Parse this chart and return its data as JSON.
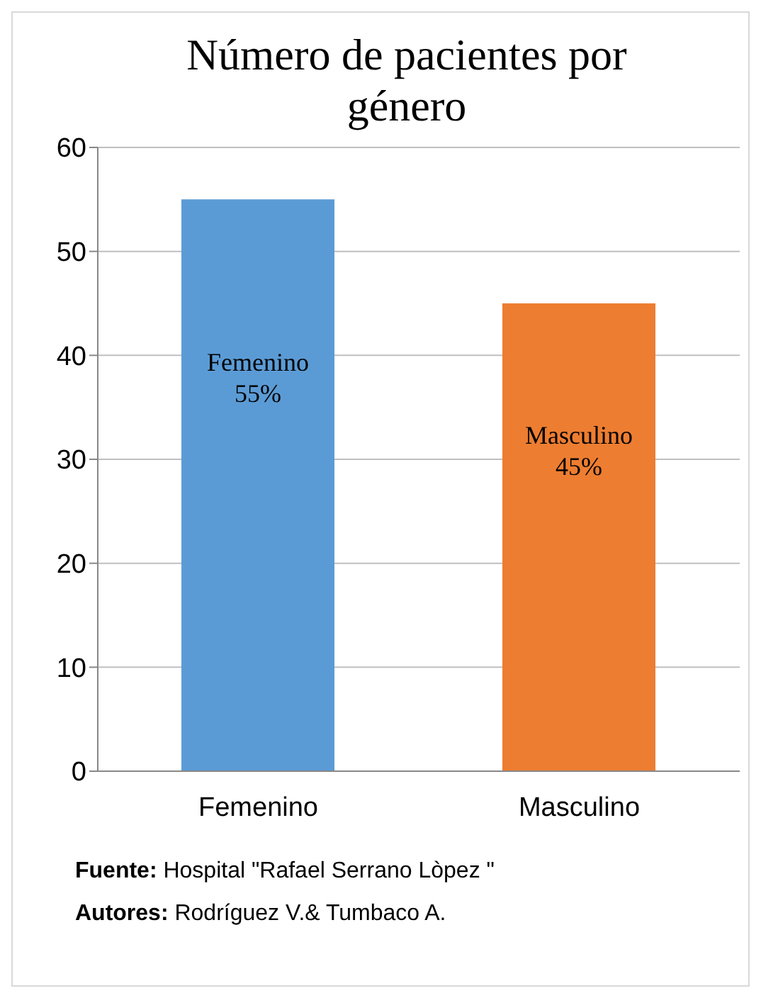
{
  "chart_data": {
    "type": "bar",
    "title": "Número de pacientes por género",
    "categories": [
      "Femenino",
      "Masculino"
    ],
    "values": [
      55,
      45
    ],
    "colors": [
      "#5b9bd5",
      "#ed7d31"
    ],
    "value_labels": [
      "Femenino 55%",
      "Masculino 45%"
    ],
    "ylim": [
      0,
      60
    ],
    "yticks": [
      0,
      10,
      20,
      30,
      40,
      50,
      60
    ],
    "grid": "y",
    "annotations": [
      "Fuente:  Hospital \"Rafael Serrano  Lòpez \"",
      "Autores: Rodríguez V.& Tumbaco A."
    ]
  }
}
